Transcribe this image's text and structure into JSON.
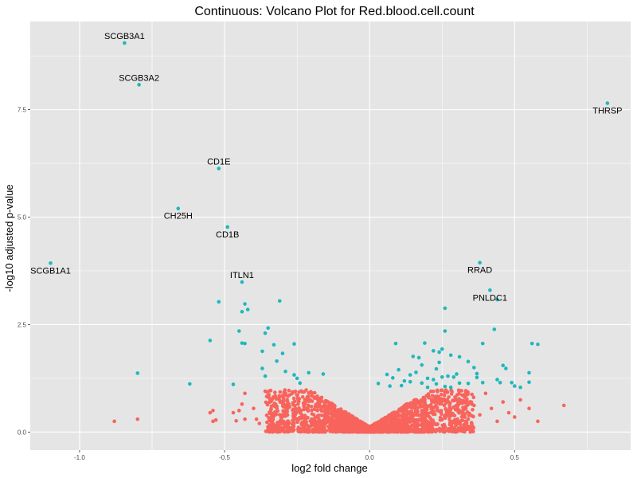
{
  "chart_data": {
    "type": "scatter",
    "title": "Continuous: Volcano Plot for Red.blood.cell.count",
    "xlabel": "log2 fold change",
    "ylabel": "-log10 adjusted p-value",
    "xlim": [
      -1.17,
      0.9
    ],
    "ylim": [
      -0.42,
      9.55
    ],
    "x_ticks": [
      -1.0,
      -0.5,
      0.0,
      0.5
    ],
    "x_tick_labels": [
      "-1.0",
      "-0.5",
      "0.0",
      "0.5"
    ],
    "y_ticks": [
      0.0,
      2.5,
      5.0,
      7.5
    ],
    "y_tick_labels": [
      "0.0",
      "2.5",
      "5.0",
      "7.5"
    ],
    "grid": true,
    "legend": "none",
    "colors": {
      "significant": "#1fb8bc",
      "not_significant": "#f8645c",
      "panel": "#e5e5e5",
      "grid": "#ffffff"
    },
    "labeled_points": [
      {
        "label": "SCGB3A1",
        "x": -0.845,
        "y": 9.05,
        "label_pos": "above"
      },
      {
        "label": "SCGB3A2",
        "x": -0.795,
        "y": 8.08,
        "label_pos": "above"
      },
      {
        "label": "THRSP",
        "x": 0.82,
        "y": 7.65,
        "label_pos": "below"
      },
      {
        "label": "CD1E",
        "x": -0.52,
        "y": 6.13,
        "label_pos": "above"
      },
      {
        "label": "CH25H",
        "x": -0.66,
        "y": 5.2,
        "label_pos": "below"
      },
      {
        "label": "CD1B",
        "x": -0.49,
        "y": 4.77,
        "label_pos": "below"
      },
      {
        "label": "SCGB1A1",
        "x": -1.1,
        "y": 3.93,
        "label_pos": "below"
      },
      {
        "label": "RRAD",
        "x": 0.38,
        "y": 3.94,
        "label_pos": "below"
      },
      {
        "label": "ITLN1",
        "x": -0.44,
        "y": 3.49,
        "label_pos": "above"
      },
      {
        "label": "PNLDC1",
        "x": 0.415,
        "y": 3.3,
        "label_pos": "below"
      }
    ],
    "significant_points": [
      [
        0.44,
        3.08
      ],
      [
        0.26,
        2.88
      ],
      [
        -0.52,
        3.03
      ],
      [
        -0.43,
        2.98
      ],
      [
        -0.42,
        2.85
      ],
      [
        -0.44,
        2.8
      ],
      [
        -0.31,
        3.05
      ],
      [
        -0.35,
        2.42
      ],
      [
        -0.36,
        2.3
      ],
      [
        -0.45,
        2.35
      ],
      [
        -0.55,
        2.13
      ],
      [
        -0.44,
        2.07
      ],
      [
        -0.43,
        2.06
      ],
      [
        -0.33,
        2.03
      ],
      [
        -0.26,
        2.05
      ],
      [
        -0.37,
        1.88
      ],
      [
        -0.3,
        1.83
      ],
      [
        -0.32,
        1.65
      ],
      [
        -0.37,
        1.48
      ],
      [
        -0.29,
        1.41
      ],
      [
        -0.26,
        1.33
      ],
      [
        -0.21,
        1.38
      ],
      [
        -0.16,
        1.35
      ],
      [
        -0.25,
        1.25
      ],
      [
        -0.24,
        1.14
      ],
      [
        -0.36,
        1.3
      ],
      [
        -0.62,
        1.12
      ],
      [
        -0.47,
        1.11
      ],
      [
        -0.8,
        1.37
      ],
      [
        0.26,
        2.35
      ],
      [
        0.43,
        2.39
      ],
      [
        0.09,
        2.06
      ],
      [
        0.19,
        2.07
      ],
      [
        0.39,
        2.06
      ],
      [
        0.56,
        2.06
      ],
      [
        0.58,
        2.04
      ],
      [
        0.25,
        1.93
      ],
      [
        0.22,
        1.89
      ],
      [
        0.24,
        1.86
      ],
      [
        0.15,
        1.76
      ],
      [
        0.17,
        1.73
      ],
      [
        0.28,
        1.79
      ],
      [
        0.31,
        1.75
      ],
      [
        0.24,
        1.62
      ],
      [
        0.18,
        1.56
      ],
      [
        0.34,
        1.64
      ],
      [
        0.36,
        1.5
      ],
      [
        0.46,
        1.55
      ],
      [
        0.47,
        1.48
      ],
      [
        0.23,
        1.47
      ],
      [
        0.14,
        1.33
      ],
      [
        0.1,
        1.45
      ],
      [
        0.16,
        1.39
      ],
      [
        0.3,
        1.35
      ],
      [
        0.37,
        1.36
      ],
      [
        0.27,
        1.3
      ],
      [
        0.29,
        1.28
      ],
      [
        0.22,
        1.22
      ],
      [
        0.25,
        1.28
      ],
      [
        0.2,
        1.25
      ],
      [
        0.08,
        1.26
      ],
      [
        0.06,
        1.34
      ],
      [
        0.12,
        1.19
      ],
      [
        0.14,
        1.17
      ],
      [
        0.18,
        1.14
      ],
      [
        0.23,
        1.12
      ],
      [
        0.31,
        1.14
      ],
      [
        0.34,
        1.13
      ],
      [
        0.37,
        1.27
      ],
      [
        0.39,
        1.15
      ],
      [
        0.44,
        1.22
      ],
      [
        0.45,
        1.15
      ],
      [
        0.49,
        1.15
      ],
      [
        0.55,
        1.38
      ],
      [
        0.55,
        1.16
      ],
      [
        0.5,
        1.07
      ],
      [
        0.52,
        1.04
      ],
      [
        0.03,
        1.13
      ],
      [
        0.07,
        1.07
      ],
      [
        0.11,
        1.08
      ],
      [
        0.2,
        1.04
      ],
      [
        0.26,
        1.06
      ],
      [
        0.28,
        1.04
      ]
    ],
    "nonsignificant_points": [
      [
        -0.88,
        0.25
      ],
      [
        -0.8,
        0.3
      ],
      [
        -0.54,
        0.5
      ],
      [
        -0.55,
        0.45
      ],
      [
        -0.53,
        0.28
      ],
      [
        -0.54,
        0.25
      ],
      [
        -0.44,
        0.65
      ],
      [
        -0.47,
        0.45
      ],
      [
        -0.45,
        0.5
      ],
      [
        -0.46,
        0.26
      ],
      [
        -0.43,
        0.3
      ],
      [
        -0.43,
        0.9
      ],
      [
        -0.4,
        0.55
      ],
      [
        -0.39,
        0.3
      ],
      [
        -0.38,
        0.2
      ],
      [
        -0.36,
        0.95
      ],
      [
        -0.34,
        0.75
      ],
      [
        -0.32,
        0.6
      ],
      [
        -0.31,
        0.4
      ],
      [
        -0.3,
        0.85
      ],
      [
        0.67,
        0.62
      ],
      [
        0.58,
        0.25
      ],
      [
        0.55,
        0.55
      ],
      [
        0.52,
        0.75
      ],
      [
        0.5,
        0.35
      ],
      [
        0.48,
        0.45
      ],
      [
        0.46,
        0.7
      ],
      [
        0.44,
        0.25
      ],
      [
        0.42,
        0.55
      ],
      [
        0.4,
        0.9
      ],
      [
        0.38,
        0.4
      ],
      [
        0.36,
        0.62
      ],
      [
        0.34,
        0.3
      ],
      [
        0.33,
        0.85
      ],
      [
        0.32,
        0.45
      ]
    ],
    "nonsignificant_cloud": {
      "description_free": true,
      "x_range": [
        -0.3,
        0.35
      ],
      "count": 2200
    }
  }
}
